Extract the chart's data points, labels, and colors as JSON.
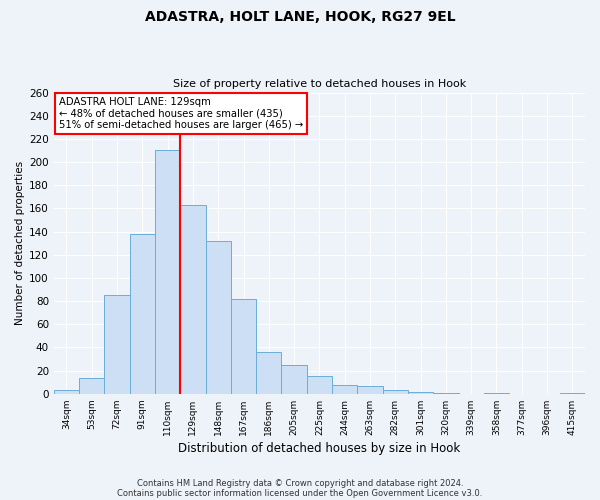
{
  "title": "ADASTRA, HOLT LANE, HOOK, RG27 9EL",
  "subtitle": "Size of property relative to detached houses in Hook",
  "xlabel": "Distribution of detached houses by size in Hook",
  "ylabel": "Number of detached properties",
  "categories": [
    "34sqm",
    "53sqm",
    "72sqm",
    "91sqm",
    "110sqm",
    "129sqm",
    "148sqm",
    "167sqm",
    "186sqm",
    "205sqm",
    "225sqm",
    "244sqm",
    "263sqm",
    "282sqm",
    "301sqm",
    "320sqm",
    "339sqm",
    "358sqm",
    "377sqm",
    "396sqm",
    "415sqm"
  ],
  "values": [
    3,
    14,
    85,
    138,
    210,
    163,
    132,
    82,
    36,
    25,
    15,
    8,
    7,
    3,
    2,
    1,
    0,
    1,
    0,
    0,
    1
  ],
  "bar_color": "#ccdff4",
  "bar_edge_color": "#6aaed6",
  "red_line_x": 4.5,
  "annotation_title": "ADASTRA HOLT LANE: 129sqm",
  "annotation_line1": "← 48% of detached houses are smaller (435)",
  "annotation_line2": "51% of semi-detached houses are larger (465) →",
  "ylim": [
    0,
    260
  ],
  "yticks": [
    0,
    20,
    40,
    60,
    80,
    100,
    120,
    140,
    160,
    180,
    200,
    220,
    240,
    260
  ],
  "background_color": "#eef2f9",
  "grid_color": "#ffffff",
  "footer1": "Contains HM Land Registry data © Crown copyright and database right 2024.",
  "footer2": "Contains public sector information licensed under the Open Government Licence v3.0."
}
